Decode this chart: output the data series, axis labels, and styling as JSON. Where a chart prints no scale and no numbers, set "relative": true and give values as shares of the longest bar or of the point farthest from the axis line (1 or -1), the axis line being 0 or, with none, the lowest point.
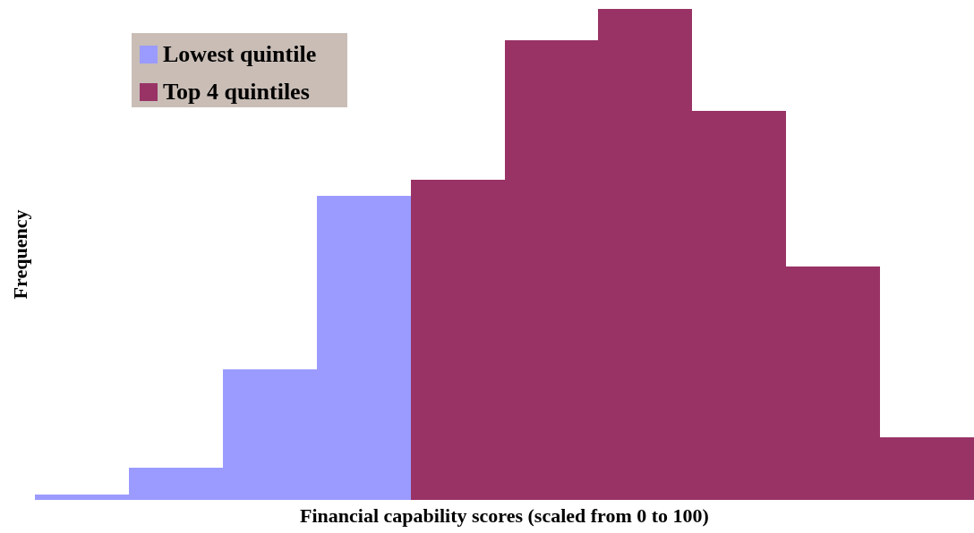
{
  "chart_data": {
    "type": "bar",
    "relative": true,
    "stacked": true,
    "xlabel": "Financial capability scores (scaled from 0 to 100)",
    "ylabel": "Frequency",
    "categories": [
      null,
      null,
      null,
      null,
      null,
      null,
      null,
      null,
      null,
      null
    ],
    "legend": "top left",
    "series": [
      {
        "name": "Lowest quintile",
        "color": "#9b9bff",
        "values": [
          0.011,
          0.066,
          0.266,
          0.619,
          null,
          null,
          null,
          null,
          null,
          null
        ]
      },
      {
        "name": "Top 4 quintiles",
        "color": "#993366",
        "values": [
          null,
          null,
          null,
          null,
          0.652,
          0.936,
          1,
          0.792,
          0.475,
          0.128
        ]
      }
    ]
  }
}
